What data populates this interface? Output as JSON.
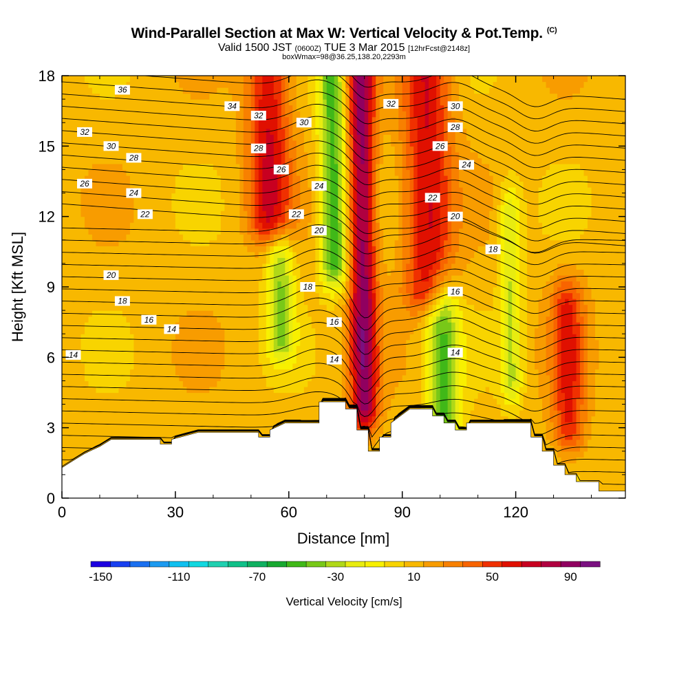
{
  "header": {
    "title": "Wind-Parallel Section at Max W: Vertical Velocity & Pot.Temp.",
    "title_mark": "(C)",
    "valid_prefix": "Valid 1500 JST",
    "valid_utc": "(0600Z)",
    "valid_date": "TUE 3 Mar 2015",
    "forecast_info": "[12hrFcst@2148z]",
    "box_info": "boxWmax=98@36.25,138.20,2293m"
  },
  "chart_data": {
    "type": "heatmap",
    "xlabel": "Distance [nm]",
    "ylabel": "Height [Kft MSL]",
    "xlim": [
      0,
      149
    ],
    "ylim": [
      0,
      18
    ],
    "x_ticks": [
      "0",
      "30",
      "60",
      "90",
      "120"
    ],
    "y_ticks": [
      "0",
      "3",
      "6",
      "9",
      "12",
      "15",
      "18"
    ],
    "x_tick_values": [
      0,
      30,
      60,
      90,
      120
    ],
    "y_tick_values": [
      0,
      3,
      6,
      9,
      12,
      15,
      18
    ],
    "background_value": 15,
    "updrafts": [
      {
        "x": 55,
        "y0": 12,
        "y1": 18,
        "amp": 55,
        "w": 4
      },
      {
        "x": 80,
        "y0": 4,
        "y1": 18,
        "amp": 80,
        "w": 2.5
      },
      {
        "x": 97,
        "y0": 9,
        "y1": 18,
        "amp": 55,
        "w": 4.5
      },
      {
        "x": 134,
        "y0": 3,
        "y1": 8,
        "amp": 45,
        "w": 3
      }
    ],
    "downdrafts": [
      {
        "x": 72,
        "y0": 10,
        "y1": 18,
        "amp": -60,
        "w": 2.5
      },
      {
        "x": 58,
        "y0": 7,
        "y1": 10,
        "amp": -45,
        "w": 2.5
      },
      {
        "x": 101,
        "y0": 3,
        "y1": 8,
        "amp": -55,
        "w": 3
      },
      {
        "x": 119,
        "y0": 5,
        "y1": 12,
        "amp": -35,
        "w": 2
      }
    ],
    "terrain": [
      [
        0,
        1.3
      ],
      [
        3,
        1.6
      ],
      [
        6,
        1.9
      ],
      [
        10,
        2.2
      ],
      [
        13,
        2.5
      ],
      [
        26,
        2.5
      ],
      [
        26,
        2.3
      ],
      [
        29,
        2.3
      ],
      [
        29,
        2.5
      ],
      [
        36,
        2.8
      ],
      [
        52,
        2.8
      ],
      [
        52,
        2.6
      ],
      [
        55,
        2.6
      ],
      [
        55,
        2.9
      ],
      [
        59,
        3.2
      ],
      [
        68,
        3.2
      ],
      [
        68,
        4.1
      ],
      [
        75,
        4.1
      ],
      [
        75,
        3.8
      ],
      [
        78,
        3.8
      ],
      [
        78,
        2.9
      ],
      [
        81,
        2.9
      ],
      [
        81,
        2.0
      ],
      [
        84,
        2.0
      ],
      [
        84,
        2.6
      ],
      [
        87,
        2.6
      ],
      [
        87,
        3.2
      ],
      [
        92,
        3.8
      ],
      [
        98,
        3.8
      ],
      [
        98,
        3.5
      ],
      [
        101,
        3.5
      ],
      [
        101,
        3.2
      ],
      [
        104,
        3.2
      ],
      [
        104,
        2.9
      ],
      [
        107,
        2.9
      ],
      [
        107,
        3.2
      ],
      [
        117,
        3.2
      ],
      [
        117,
        3.2
      ],
      [
        124,
        3.2
      ],
      [
        124,
        2.6
      ],
      [
        127,
        2.6
      ],
      [
        127,
        2.0
      ],
      [
        130,
        2.0
      ],
      [
        130,
        1.4
      ],
      [
        133,
        1.4
      ],
      [
        133,
        1.0
      ],
      [
        136,
        1.0
      ],
      [
        136,
        0.7
      ],
      [
        142,
        0.7
      ],
      [
        142,
        0.3
      ],
      [
        149,
        0.3
      ]
    ],
    "contour_labels": [
      {
        "text": "36",
        "x": 16,
        "y": 17.4
      },
      {
        "text": "34",
        "x": 45,
        "y": 16.7
      },
      {
        "text": "32",
        "x": 52,
        "y": 16.3
      },
      {
        "text": "30",
        "x": 64,
        "y": 16.0
      },
      {
        "text": "32",
        "x": 87,
        "y": 16.8
      },
      {
        "text": "30",
        "x": 104,
        "y": 16.7
      },
      {
        "text": "28",
        "x": 104,
        "y": 15.8
      },
      {
        "text": "26",
        "x": 100,
        "y": 15.0
      },
      {
        "text": "24",
        "x": 107,
        "y": 14.2
      },
      {
        "text": "32",
        "x": 6,
        "y": 15.6
      },
      {
        "text": "30",
        "x": 13,
        "y": 15.0
      },
      {
        "text": "28",
        "x": 19,
        "y": 14.5
      },
      {
        "text": "28",
        "x": 52,
        "y": 14.9
      },
      {
        "text": "26",
        "x": 58,
        "y": 14.0
      },
      {
        "text": "24",
        "x": 68,
        "y": 13.3
      },
      {
        "text": "26",
        "x": 6,
        "y": 13.4
      },
      {
        "text": "24",
        "x": 19,
        "y": 13.0
      },
      {
        "text": "22",
        "x": 22,
        "y": 12.1
      },
      {
        "text": "22",
        "x": 62,
        "y": 12.1
      },
      {
        "text": "22",
        "x": 98,
        "y": 12.8
      },
      {
        "text": "20",
        "x": 104,
        "y": 12.0
      },
      {
        "text": "20",
        "x": 68,
        "y": 11.4
      },
      {
        "text": "18",
        "x": 114,
        "y": 10.6
      },
      {
        "text": "20",
        "x": 13,
        "y": 9.5
      },
      {
        "text": "18",
        "x": 65,
        "y": 9.0
      },
      {
        "text": "16",
        "x": 104,
        "y": 8.8
      },
      {
        "text": "18",
        "x": 16,
        "y": 8.4
      },
      {
        "text": "16",
        "x": 72,
        "y": 7.5
      },
      {
        "text": "16",
        "x": 23,
        "y": 7.6
      },
      {
        "text": "14",
        "x": 29,
        "y": 7.2
      },
      {
        "text": "14",
        "x": 104,
        "y": 6.2
      },
      {
        "text": "14",
        "x": 3,
        "y": 6.1
      },
      {
        "text": "14",
        "x": 72,
        "y": 5.9
      }
    ]
  },
  "colorbar": {
    "title": "Vertical Velocity [cm/s]",
    "labels": [
      "-150",
      "-110",
      "-70",
      "-30",
      "10",
      "50",
      "90"
    ],
    "colors": [
      "#1c00e0",
      "#1840f0",
      "#1a70f0",
      "#1c9af0",
      "#10c0f0",
      "#12d8e0",
      "#20d0b0",
      "#10c088",
      "#10b060",
      "#18a830",
      "#40b818",
      "#78c818",
      "#b0d818",
      "#e8ec10",
      "#f8f000",
      "#f8d400",
      "#f8b800",
      "#f89c00",
      "#f88000",
      "#f86400",
      "#f03000",
      "#e01000",
      "#c80020",
      "#b00040",
      "#900060",
      "#7a1080"
    ]
  }
}
